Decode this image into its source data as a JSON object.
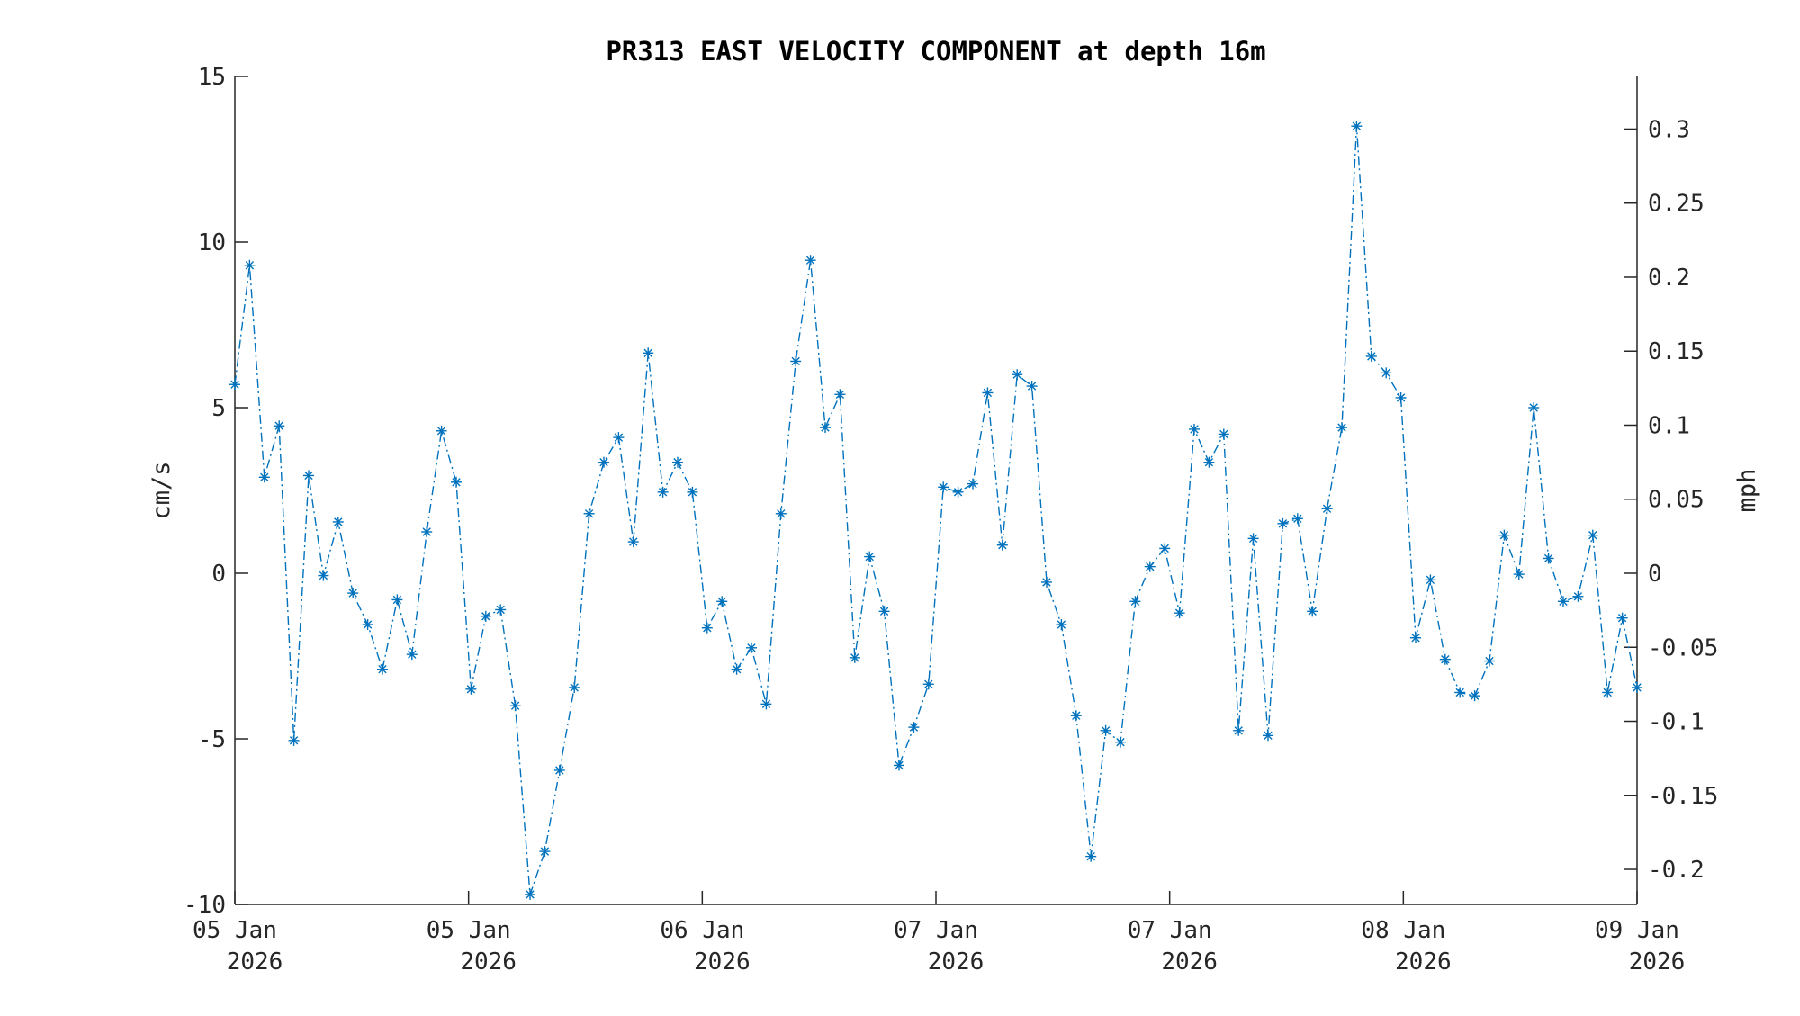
{
  "chart_data": {
    "type": "line",
    "title": "PR313 EAST VELOCITY COMPONENT at depth 16m",
    "xlabel": "",
    "ylabel": "cm/s",
    "ylabel_right": "mph",
    "ylim": [
      -10,
      15
    ],
    "yticks": [
      15,
      10,
      5,
      0,
      -5,
      -10
    ],
    "yticks_right": [
      "0.3",
      "0.25",
      "0.2",
      "0.15",
      "0.1",
      "0.05",
      "0",
      "-0.05",
      "-0.1",
      "-0.15",
      "-0.2"
    ],
    "yticks_right_values": [
      0.3,
      0.25,
      0.2,
      0.15,
      0.1,
      0.05,
      0,
      -0.05,
      -0.1,
      -0.15,
      -0.2
    ],
    "cms_to_mph": 0.0223694,
    "xticks": [
      {
        "day": "05 Jan",
        "year": "2026"
      },
      {
        "day": "05 Jan",
        "year": "2026"
      },
      {
        "day": "06 Jan",
        "year": "2026"
      },
      {
        "day": "07 Jan",
        "year": "2026"
      },
      {
        "day": "07 Jan",
        "year": "2026"
      },
      {
        "day": "08 Jan",
        "year": "2026"
      },
      {
        "day": "09 Jan",
        "year": "2026"
      }
    ],
    "grid": false,
    "series": [
      {
        "name": "east velocity",
        "color": "#0072BD",
        "line_style": "dash-dot",
        "marker": "asterisk",
        "values": [
          5.7,
          9.3,
          2.9,
          4.45,
          -5.05,
          2.95,
          -0.07,
          1.55,
          -0.6,
          -1.55,
          -2.9,
          -0.8,
          -2.45,
          1.25,
          4.3,
          2.75,
          -3.5,
          -1.3,
          -1.1,
          -4.0,
          -9.7,
          -8.4,
          -5.95,
          -3.45,
          1.8,
          3.35,
          4.1,
          0.95,
          6.65,
          2.45,
          3.35,
          2.45,
          -1.65,
          -0.85,
          -2.9,
          -2.25,
          -3.95,
          1.8,
          6.4,
          9.45,
          4.4,
          5.4,
          -2.55,
          0.5,
          -1.15,
          -5.8,
          -4.65,
          -3.35,
          2.6,
          2.45,
          2.7,
          5.45,
          0.85,
          6.0,
          5.65,
          -0.27,
          -1.55,
          -4.3,
          -8.55,
          -4.75,
          -5.1,
          -0.85,
          0.2,
          0.75,
          -1.2,
          4.35,
          3.35,
          4.2,
          -4.75,
          1.05,
          -4.9,
          1.5,
          1.65,
          -1.15,
          1.95,
          4.4,
          13.5,
          6.55,
          6.05,
          5.3,
          -1.95,
          -0.2,
          -2.6,
          -3.6,
          -3.7,
          -2.65,
          1.15,
          -0.03,
          5.0,
          0.45,
          -0.85,
          -0.7,
          1.15,
          -3.6,
          -1.35,
          -3.45
        ]
      }
    ]
  }
}
